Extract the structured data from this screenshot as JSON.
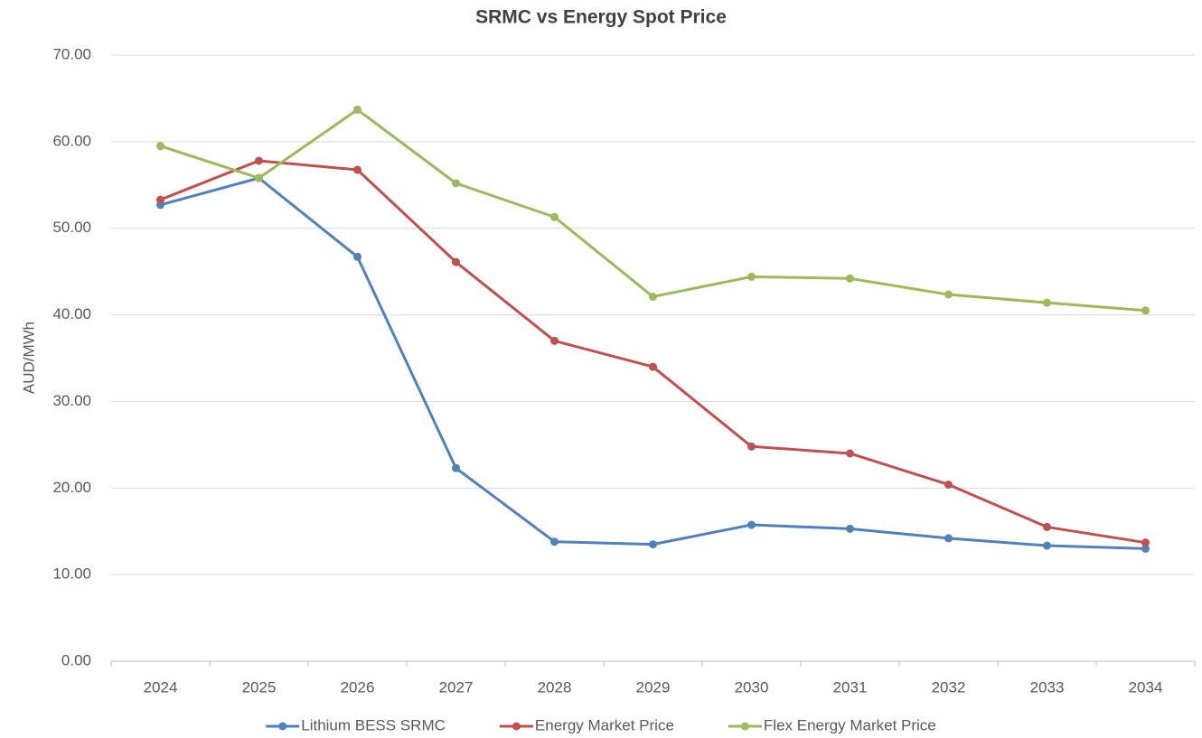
{
  "chart_data": {
    "type": "line",
    "title": "SRMC vs Energy Spot Price",
    "y_label": "AUD/MWh",
    "categories": [
      "2024",
      "2025",
      "2026",
      "2027",
      "2028",
      "2029",
      "2030",
      "2031",
      "2032",
      "2033",
      "2034"
    ],
    "series": [
      {
        "name": "Lithium BESS SRMC",
        "color": "#4f81bd",
        "values": [
          52.7,
          55.8,
          46.7,
          22.3,
          13.8,
          13.5,
          15.75,
          15.3,
          14.2,
          13.35,
          13.0
        ]
      },
      {
        "name": "Energy Market Price",
        "color": "#c0504d",
        "values": [
          53.3,
          57.8,
          56.75,
          46.1,
          37.0,
          34.0,
          24.8,
          24.0,
          20.4,
          15.5,
          13.7
        ]
      },
      {
        "name": "Flex Energy Market Price",
        "color": "#9bbb59",
        "values": [
          59.5,
          55.8,
          63.7,
          55.2,
          51.3,
          42.1,
          44.4,
          44.2,
          42.35,
          41.4,
          40.5
        ]
      }
    ],
    "ylim": [
      0,
      70
    ],
    "yticks": [
      {
        "value": 0,
        "label": "0.00"
      },
      {
        "value": 10,
        "label": "10.00"
      },
      {
        "value": 20,
        "label": "20.00"
      },
      {
        "value": 30,
        "label": "30.00"
      },
      {
        "value": 40,
        "label": "40.00"
      },
      {
        "value": 50,
        "label": "50.00"
      },
      {
        "value": 60,
        "label": "60.00"
      },
      {
        "value": 70,
        "label": "70.00"
      }
    ],
    "grid": true,
    "legend": "bottom"
  }
}
